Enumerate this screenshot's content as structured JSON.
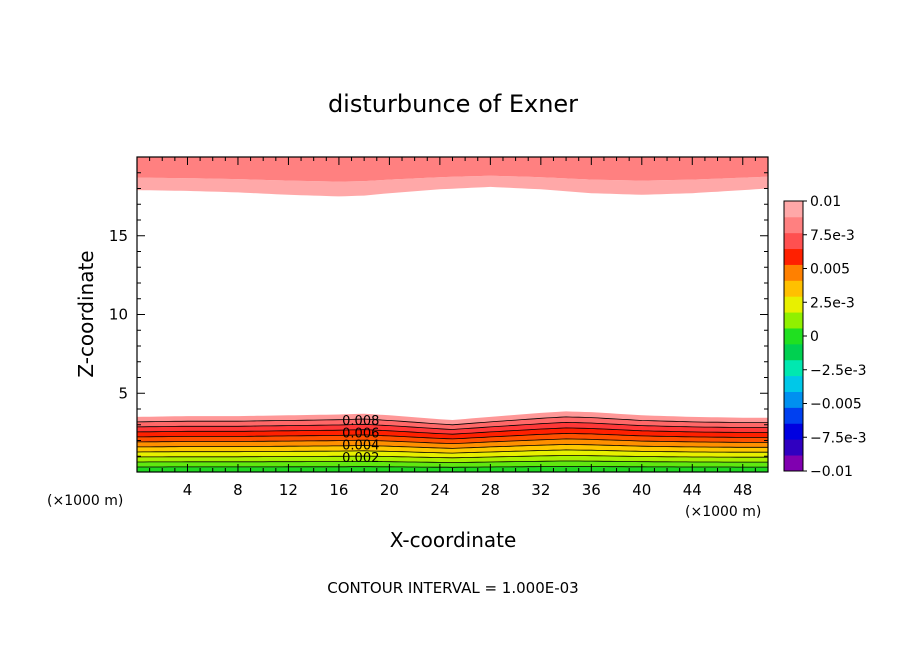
{
  "chart_data": {
    "type": "contour",
    "title": "disturbunce of Exner",
    "xlabel": "X-coordinate",
    "ylabel": "Z-coordinate",
    "x_unit_left": "(×1000 m)",
    "x_unit_right": "(×1000 m)",
    "xlim": [
      0,
      50
    ],
    "ylim": [
      0,
      20
    ],
    "x_ticks": [
      {
        "value": 4,
        "label": "4"
      },
      {
        "value": 8,
        "label": "8"
      },
      {
        "value": 12,
        "label": "12"
      },
      {
        "value": 16,
        "label": "16"
      },
      {
        "value": 20,
        "label": "20"
      },
      {
        "value": 24,
        "label": "24"
      },
      {
        "value": 28,
        "label": "28"
      },
      {
        "value": 32,
        "label": "32"
      },
      {
        "value": 36,
        "label": "36"
      },
      {
        "value": 40,
        "label": "40"
      },
      {
        "value": 44,
        "label": "44"
      },
      {
        "value": 48,
        "label": "48"
      }
    ],
    "y_ticks": [
      {
        "value": 5,
        "label": "5"
      },
      {
        "value": 10,
        "label": "10"
      },
      {
        "value": 15,
        "label": "15"
      }
    ],
    "contour_interval_text": "CONTOUR INTERVAL = 1.000E-03",
    "contour_labels": [
      "0.008",
      "0.006",
      "0.004",
      "0.002"
    ],
    "colorbar": {
      "min": -0.01,
      "max": 0.01,
      "colors": [
        "#8000b0",
        "#3000c0",
        "#0000e0",
        "#0040f0",
        "#0090f0",
        "#00c8e8",
        "#00e8b0",
        "#00d050",
        "#20e020",
        "#90f000",
        "#e8f000",
        "#ffc000",
        "#ff8000",
        "#ff2000",
        "#ff5050",
        "#ff8080",
        "#ffa8a8"
      ],
      "ticks": [
        {
          "value": 0.01,
          "label": "0.01"
        },
        {
          "value": 0.0075,
          "label": "7.5e-3"
        },
        {
          "value": 0.005,
          "label": "0.005"
        },
        {
          "value": 0.0025,
          "label": "2.5e-3"
        },
        {
          "value": 0,
          "label": "0"
        },
        {
          "value": -0.0025,
          "label": "−2.5e-3"
        },
        {
          "value": -0.005,
          "label": "−0.005"
        },
        {
          "value": -0.0075,
          "label": "−7.5e-3"
        },
        {
          "value": -0.01,
          "label": "−0.01"
        }
      ]
    },
    "surface_layer": {
      "level_colors": [
        "#20d820",
        "#60e810",
        "#a8f000",
        "#e8f000",
        "#ffc800",
        "#ff9000",
        "#ff5000",
        "#ff2000",
        "#ff3838",
        "#ff6868",
        "#ff9898"
      ],
      "x": [
        0,
        4,
        8,
        12,
        16,
        18,
        20,
        24,
        25,
        28,
        32,
        34,
        36,
        40,
        44,
        48,
        50
      ],
      "top_z": [
        3.5,
        3.55,
        3.55,
        3.6,
        3.65,
        3.7,
        3.6,
        3.35,
        3.3,
        3.5,
        3.75,
        3.85,
        3.8,
        3.6,
        3.5,
        3.45,
        3.45
      ]
    },
    "upper_layer": {
      "level_colors": [
        "#ffa8a8",
        "#ff8080"
      ],
      "x": [
        0,
        4,
        8,
        12,
        16,
        18,
        20,
        24,
        28,
        32,
        36,
        40,
        44,
        48,
        50
      ],
      "base_z": [
        17.9,
        17.85,
        17.75,
        17.6,
        17.5,
        17.55,
        17.7,
        17.95,
        18.1,
        17.95,
        17.7,
        17.6,
        17.7,
        17.9,
        18.0
      ]
    }
  }
}
